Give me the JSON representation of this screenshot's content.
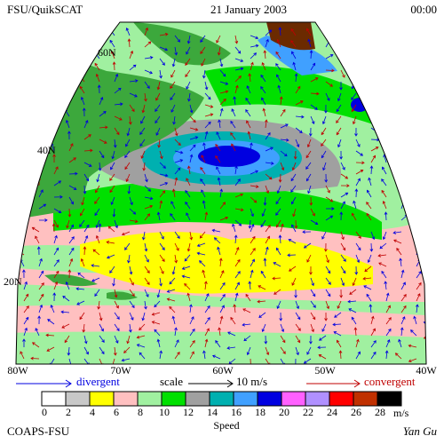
{
  "header": {
    "left": "FSU/QuikSCAT",
    "center": "21 January 2003",
    "right": "00:00"
  },
  "map": {
    "lat_labels": [
      "60N",
      "40N",
      "20N"
    ],
    "lon_labels": [
      "80W",
      "70W",
      "60W",
      "50W",
      "40W"
    ]
  },
  "legend": {
    "divergent": "divergent",
    "scale": "scale",
    "scale_value": "10 m/s",
    "convergent": "convergent"
  },
  "colorbar": {
    "colors": [
      "#ffffff",
      "#c8c8c8",
      "#ffff00",
      "#ffc0c0",
      "#a0f0a0",
      "#00e000",
      "#a0a0a0",
      "#00b0b0",
      "#40a0ff",
      "#0000e0",
      "#ff60ff",
      "#b090ff",
      "#ff0000",
      "#c03000",
      "#000000"
    ],
    "ticks": [
      0,
      2,
      4,
      6,
      8,
      10,
      12,
      14,
      16,
      18,
      20,
      22,
      24,
      26,
      28
    ],
    "unit": "m/s",
    "label": "Speed"
  },
  "footer": {
    "left": "COAPS-FSU",
    "right": "Yan Gu"
  }
}
